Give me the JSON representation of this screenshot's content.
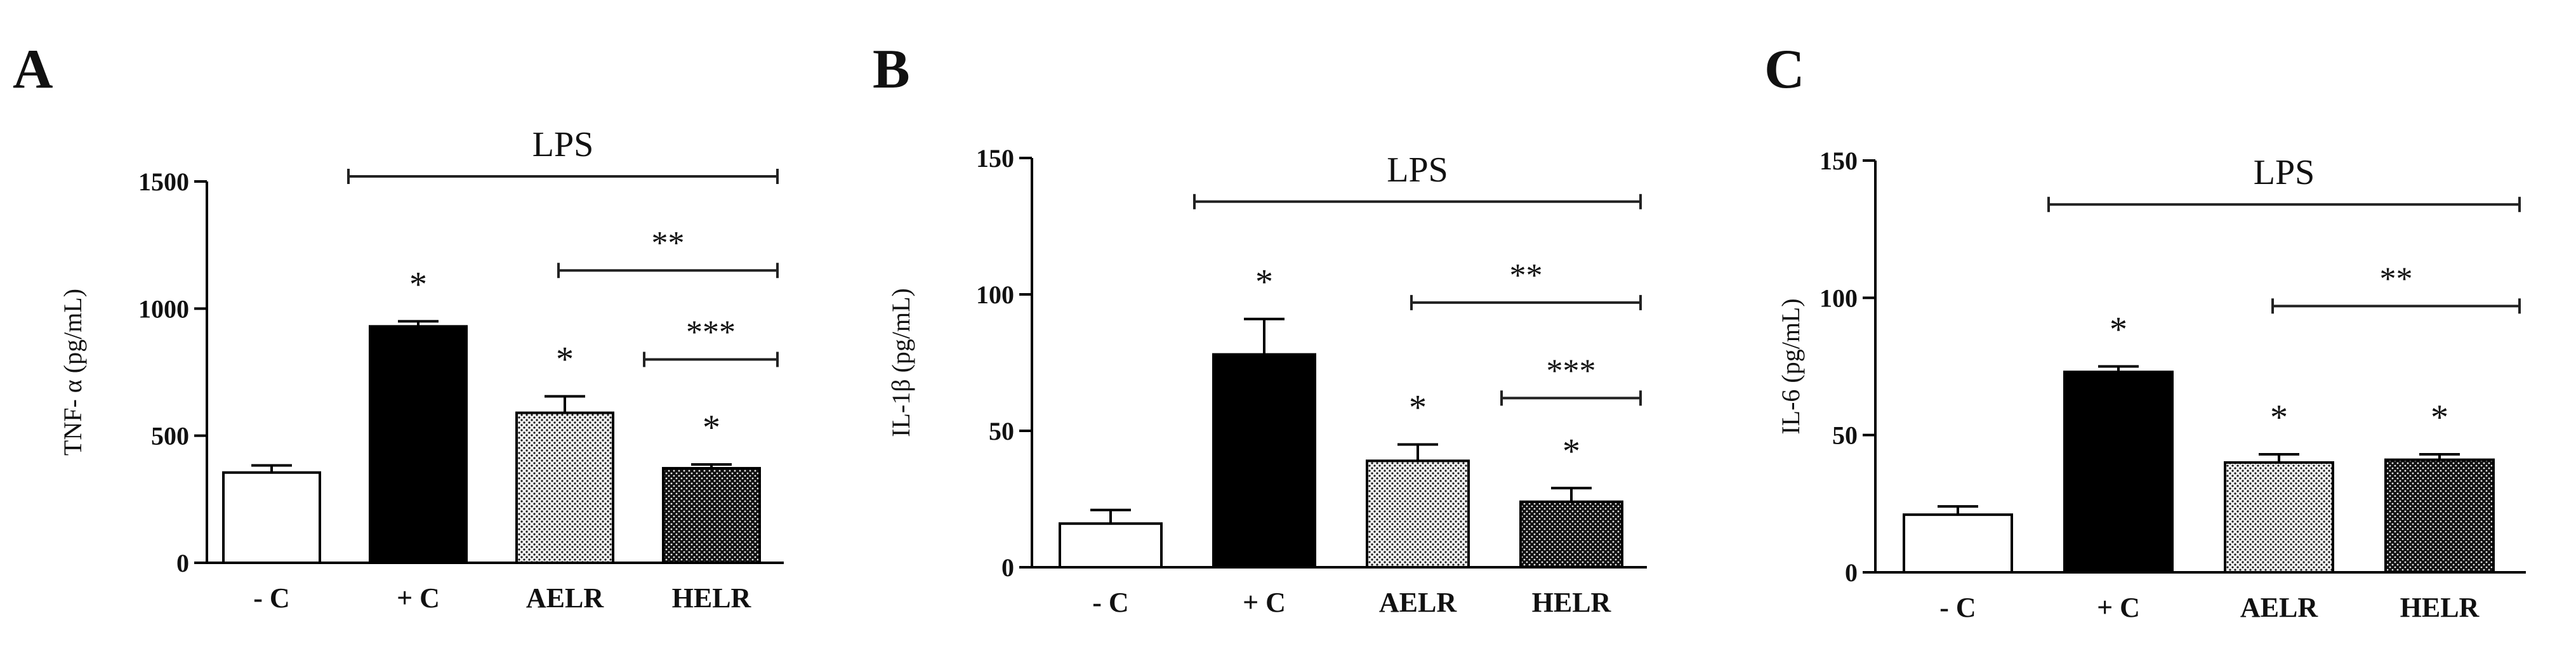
{
  "chart_data": [
    {
      "type": "bar",
      "panel_label": "A",
      "ylabel": "TNF- α (pg/mL)",
      "ylim": [
        0,
        1500
      ],
      "yticks": [
        0,
        500,
        1000,
        1500
      ],
      "ytick_labels": [
        "0",
        "500",
        "1000",
        "1500"
      ],
      "categories": [
        "- C",
        "+ C",
        "AELR",
        "HELR"
      ],
      "values": [
        355,
        930,
        590,
        372
      ],
      "errors": [
        28,
        20,
        65,
        15
      ],
      "fills": [
        "white",
        "black",
        "light-dots",
        "dark-dots"
      ],
      "point_marks": [
        "",
        "*",
        "*",
        "*"
      ],
      "brackets": [
        {
          "from": 1,
          "to": 3,
          "y": 1520,
          "label": "LPS"
        },
        {
          "from": 2,
          "to": 3,
          "y": 1150,
          "label": "**"
        },
        {
          "from": 3,
          "to": 3,
          "y": 800,
          "label": "***"
        }
      ]
    },
    {
      "type": "bar",
      "panel_label": "B",
      "ylabel": "IL-1β (pg/mL)",
      "ylim": [
        0,
        150
      ],
      "yticks": [
        0,
        50,
        100,
        150
      ],
      "ytick_labels": [
        "0",
        "50",
        "100",
        "150"
      ],
      "categories": [
        "- C",
        "+ C",
        "AELR",
        "HELR"
      ],
      "values": [
        16,
        78,
        39,
        24
      ],
      "errors": [
        5,
        13,
        6,
        5
      ],
      "fills": [
        "white",
        "black",
        "light-dots",
        "dark-dots"
      ],
      "point_marks": [
        "",
        "*",
        "*",
        "*"
      ],
      "brackets": [
        {
          "from": 1,
          "to": 3,
          "y": 134,
          "label": "LPS"
        },
        {
          "from": 2,
          "to": 3,
          "y": 97,
          "label": "**"
        },
        {
          "from": 3,
          "to": 3,
          "y": 62,
          "label": "***"
        }
      ]
    },
    {
      "type": "bar",
      "panel_label": "C",
      "ylabel": "IL-6 (pg/mL)",
      "ylim": [
        0,
        150
      ],
      "yticks": [
        0,
        50,
        100,
        150
      ],
      "ytick_labels": [
        "0",
        "50",
        "100",
        "150"
      ],
      "categories": [
        "- C",
        "+ C",
        "AELR",
        "HELR"
      ],
      "values": [
        21,
        73,
        40,
        41
      ],
      "errors": [
        3,
        2,
        3,
        2
      ],
      "fills": [
        "white",
        "black",
        "light-dots",
        "dark-dots"
      ],
      "point_marks": [
        "",
        "*",
        "*",
        "*"
      ],
      "brackets": [
        {
          "from": 1,
          "to": 3,
          "y": 134,
          "label": "LPS"
        },
        {
          "from": 2,
          "to": 3,
          "y": 97,
          "label": "**"
        }
      ]
    }
  ]
}
